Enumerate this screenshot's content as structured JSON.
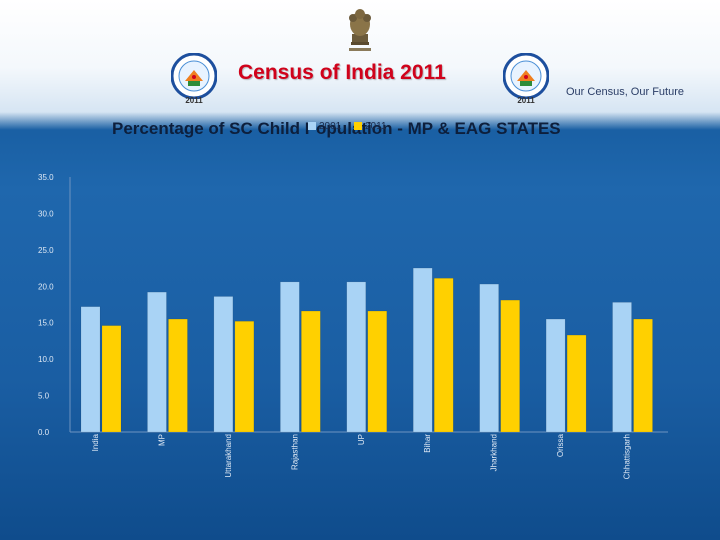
{
  "header": {
    "title": "Census of India  2011",
    "tagline": "Our Census,  Our Future",
    "logo_left_year": "2011",
    "logo_right_year": "2011"
  },
  "colors": {
    "series_2001": "#a9d3f5",
    "series_2011": "#ffd000",
    "title_red": "#d0021b"
  },
  "chart_data": {
    "type": "bar",
    "title": "Percentage of SC Child Population - MP & EAG STATES",
    "categories": [
      "India",
      "MP",
      "Uttarakhand",
      "Rajasthan",
      "UP",
      "Bihar",
      "Jharkhand",
      "Orissa",
      "Chhattisgarh"
    ],
    "series": [
      {
        "name": "2001",
        "color": "#a9d3f5",
        "values": [
          17.2,
          19.2,
          18.6,
          20.6,
          20.6,
          22.5,
          20.3,
          15.5,
          17.8
        ]
      },
      {
        "name": "2011",
        "color": "#ffd000",
        "values": [
          14.6,
          15.5,
          15.2,
          16.6,
          16.6,
          21.1,
          18.1,
          13.3,
          15.5
        ]
      }
    ],
    "ylim": [
      0,
      35
    ],
    "yticks": [
      "0.0",
      "5.0",
      "10.0",
      "15.0",
      "20.0",
      "25.0",
      "30.0",
      "35.0"
    ],
    "grid": false,
    "legend_position": "top-center"
  }
}
